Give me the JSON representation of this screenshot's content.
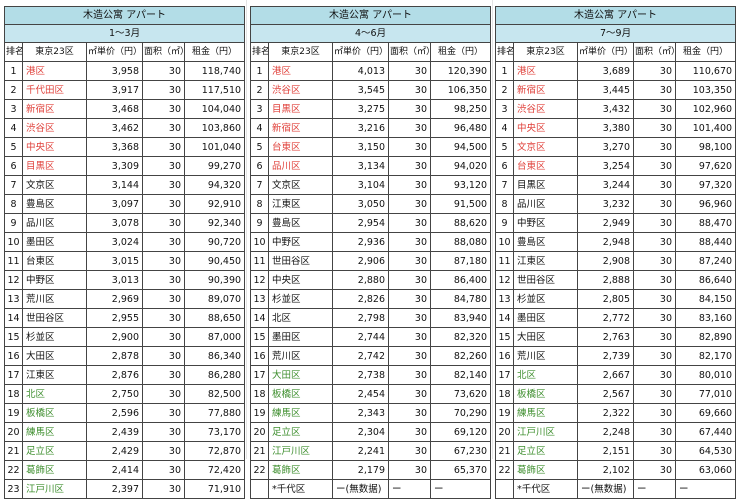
{
  "headers": {
    "rank": "排名",
    "ward": "東京23区",
    "unit_price": "㎡単价（円）",
    "area": "面积（㎡）",
    "rent": "租金（円）"
  },
  "colors": {
    "red": "#e0413b",
    "green": "#3f8f2f",
    "title_bg": "#b3dde7",
    "period_bg": "#c7e6ef"
  },
  "tables": [
    {
      "title": "木造公寓 アパート",
      "period": "1～3月",
      "rows": [
        {
          "rank": "1",
          "ward": "港区",
          "color": "red",
          "price": "3,958",
          "area": "30",
          "rent": "118,740"
        },
        {
          "rank": "2",
          "ward": "千代田区",
          "color": "red",
          "price": "3,917",
          "area": "30",
          "rent": "117,510"
        },
        {
          "rank": "3",
          "ward": "新宿区",
          "color": "red",
          "price": "3,468",
          "area": "30",
          "rent": "104,040"
        },
        {
          "rank": "4",
          "ward": "渋谷区",
          "color": "red",
          "price": "3,462",
          "area": "30",
          "rent": "103,860"
        },
        {
          "rank": "5",
          "ward": "中央区",
          "color": "red",
          "price": "3,368",
          "area": "30",
          "rent": "101,040"
        },
        {
          "rank": "6",
          "ward": "目黒区",
          "color": "red",
          "price": "3,309",
          "area": "30",
          "rent": "99,270"
        },
        {
          "rank": "7",
          "ward": "文京区",
          "color": "black",
          "price": "3,144",
          "area": "30",
          "rent": "94,320"
        },
        {
          "rank": "8",
          "ward": "豊島区",
          "color": "black",
          "price": "3,097",
          "area": "30",
          "rent": "92,910"
        },
        {
          "rank": "9",
          "ward": "品川区",
          "color": "black",
          "price": "3,078",
          "area": "30",
          "rent": "92,340"
        },
        {
          "rank": "10",
          "ward": "墨田区",
          "color": "black",
          "price": "3,024",
          "area": "30",
          "rent": "90,720"
        },
        {
          "rank": "11",
          "ward": "台東区",
          "color": "black",
          "price": "3,015",
          "area": "30",
          "rent": "90,450"
        },
        {
          "rank": "12",
          "ward": "中野区",
          "color": "black",
          "price": "3,013",
          "area": "30",
          "rent": "90,390"
        },
        {
          "rank": "13",
          "ward": "荒川区",
          "color": "black",
          "price": "2,969",
          "area": "30",
          "rent": "89,070"
        },
        {
          "rank": "14",
          "ward": "世田谷区",
          "color": "black",
          "price": "2,955",
          "area": "30",
          "rent": "88,650"
        },
        {
          "rank": "15",
          "ward": "杉並区",
          "color": "black",
          "price": "2,900",
          "area": "30",
          "rent": "87,000"
        },
        {
          "rank": "16",
          "ward": "大田区",
          "color": "black",
          "price": "2,878",
          "area": "30",
          "rent": "86,340"
        },
        {
          "rank": "17",
          "ward": "江東区",
          "color": "black",
          "price": "2,876",
          "area": "30",
          "rent": "86,280"
        },
        {
          "rank": "18",
          "ward": "北区",
          "color": "green",
          "price": "2,750",
          "area": "30",
          "rent": "82,500"
        },
        {
          "rank": "19",
          "ward": "板橋区",
          "color": "green",
          "price": "2,596",
          "area": "30",
          "rent": "77,880"
        },
        {
          "rank": "20",
          "ward": "練馬区",
          "color": "green",
          "price": "2,439",
          "area": "30",
          "rent": "73,170"
        },
        {
          "rank": "21",
          "ward": "足立区",
          "color": "green",
          "price": "2,429",
          "area": "30",
          "rent": "72,870"
        },
        {
          "rank": "22",
          "ward": "葛飾区",
          "color": "green",
          "price": "2,414",
          "area": "30",
          "rent": "72,420"
        },
        {
          "rank": "23",
          "ward": "江戸川区",
          "color": "green",
          "price": "2,397",
          "area": "30",
          "rent": "71,910"
        }
      ]
    },
    {
      "title": "木造公寓 アパート",
      "period": "4～6月",
      "rows": [
        {
          "rank": "1",
          "ward": "港区",
          "color": "red",
          "price": "4,013",
          "area": "30",
          "rent": "120,390"
        },
        {
          "rank": "2",
          "ward": "渋谷区",
          "color": "red",
          "price": "3,545",
          "area": "30",
          "rent": "106,350"
        },
        {
          "rank": "3",
          "ward": "目黒区",
          "color": "red",
          "price": "3,275",
          "area": "30",
          "rent": "98,250"
        },
        {
          "rank": "4",
          "ward": "新宿区",
          "color": "red",
          "price": "3,216",
          "area": "30",
          "rent": "96,480"
        },
        {
          "rank": "5",
          "ward": "台東区",
          "color": "red",
          "price": "3,150",
          "area": "30",
          "rent": "94,500"
        },
        {
          "rank": "6",
          "ward": "品川区",
          "color": "red",
          "price": "3,134",
          "area": "30",
          "rent": "94,020"
        },
        {
          "rank": "7",
          "ward": "文京区",
          "color": "black",
          "price": "3,104",
          "area": "30",
          "rent": "93,120"
        },
        {
          "rank": "8",
          "ward": "江東区",
          "color": "black",
          "price": "3,050",
          "area": "30",
          "rent": "91,500"
        },
        {
          "rank": "9",
          "ward": "豊島区",
          "color": "black",
          "price": "2,954",
          "area": "30",
          "rent": "88,620"
        },
        {
          "rank": "10",
          "ward": "中野区",
          "color": "black",
          "price": "2,936",
          "area": "30",
          "rent": "88,080"
        },
        {
          "rank": "11",
          "ward": "世田谷区",
          "color": "black",
          "price": "2,906",
          "area": "30",
          "rent": "87,180"
        },
        {
          "rank": "12",
          "ward": "中央区",
          "color": "black",
          "price": "2,880",
          "area": "30",
          "rent": "86,400"
        },
        {
          "rank": "13",
          "ward": "杉並区",
          "color": "black",
          "price": "2,826",
          "area": "30",
          "rent": "84,780"
        },
        {
          "rank": "14",
          "ward": "北区",
          "color": "black",
          "price": "2,798",
          "area": "30",
          "rent": "83,940"
        },
        {
          "rank": "15",
          "ward": "墨田区",
          "color": "black",
          "price": "2,744",
          "area": "30",
          "rent": "82,320"
        },
        {
          "rank": "16",
          "ward": "荒川区",
          "color": "black",
          "price": "2,742",
          "area": "30",
          "rent": "82,260"
        },
        {
          "rank": "17",
          "ward": "大田区",
          "color": "green",
          "price": "2,738",
          "area": "30",
          "rent": "82,140"
        },
        {
          "rank": "18",
          "ward": "板橋区",
          "color": "green",
          "price": "2,454",
          "area": "30",
          "rent": "73,620"
        },
        {
          "rank": "19",
          "ward": "練馬区",
          "color": "green",
          "price": "2,343",
          "area": "30",
          "rent": "70,290"
        },
        {
          "rank": "20",
          "ward": "足立区",
          "color": "green",
          "price": "2,304",
          "area": "30",
          "rent": "69,120"
        },
        {
          "rank": "21",
          "ward": "江戸川区",
          "color": "green",
          "price": "2,241",
          "area": "30",
          "rent": "67,230"
        },
        {
          "rank": "22",
          "ward": "葛飾区",
          "color": "green",
          "price": "2,179",
          "area": "30",
          "rent": "65,370"
        }
      ],
      "footer": {
        "ward": "*千代区",
        "price": "ー(無数据)",
        "area": "ー",
        "rent": "ー"
      }
    },
    {
      "title": "木造公寓 アパート",
      "period": "7～9月",
      "rows": [
        {
          "rank": "1",
          "ward": "港区",
          "color": "red",
          "price": "3,689",
          "area": "30",
          "rent": "110,670"
        },
        {
          "rank": "2",
          "ward": "新宿区",
          "color": "red",
          "price": "3,445",
          "area": "30",
          "rent": "103,350"
        },
        {
          "rank": "3",
          "ward": "渋谷区",
          "color": "red",
          "price": "3,432",
          "area": "30",
          "rent": "102,960"
        },
        {
          "rank": "4",
          "ward": "中央区",
          "color": "red",
          "price": "3,380",
          "area": "30",
          "rent": "101,400"
        },
        {
          "rank": "5",
          "ward": "文京区",
          "color": "red",
          "price": "3,270",
          "area": "30",
          "rent": "98,100"
        },
        {
          "rank": "6",
          "ward": "台東区",
          "color": "red",
          "price": "3,254",
          "area": "30",
          "rent": "97,620"
        },
        {
          "rank": "7",
          "ward": "目黒区",
          "color": "black",
          "price": "3,244",
          "area": "30",
          "rent": "97,320"
        },
        {
          "rank": "8",
          "ward": "品川区",
          "color": "black",
          "price": "3,232",
          "area": "30",
          "rent": "96,960"
        },
        {
          "rank": "9",
          "ward": "中野区",
          "color": "black",
          "price": "2,949",
          "area": "30",
          "rent": "88,470"
        },
        {
          "rank": "10",
          "ward": "豊島区",
          "color": "black",
          "price": "2,948",
          "area": "30",
          "rent": "88,440"
        },
        {
          "rank": "11",
          "ward": "江東区",
          "color": "black",
          "price": "2,908",
          "area": "30",
          "rent": "87,240"
        },
        {
          "rank": "12",
          "ward": "世田谷区",
          "color": "black",
          "price": "2,888",
          "area": "30",
          "rent": "86,640"
        },
        {
          "rank": "13",
          "ward": "杉並区",
          "color": "black",
          "price": "2,805",
          "area": "30",
          "rent": "84,150"
        },
        {
          "rank": "14",
          "ward": "墨田区",
          "color": "black",
          "price": "2,772",
          "area": "30",
          "rent": "83,160"
        },
        {
          "rank": "15",
          "ward": "大田区",
          "color": "black",
          "price": "2,763",
          "area": "30",
          "rent": "82,890"
        },
        {
          "rank": "16",
          "ward": "荒川区",
          "color": "black",
          "price": "2,739",
          "area": "30",
          "rent": "82,170"
        },
        {
          "rank": "17",
          "ward": "北区",
          "color": "green",
          "price": "2,667",
          "area": "30",
          "rent": "80,010"
        },
        {
          "rank": "18",
          "ward": "板橋区",
          "color": "green",
          "price": "2,567",
          "area": "30",
          "rent": "77,010"
        },
        {
          "rank": "19",
          "ward": "練馬区",
          "color": "green",
          "price": "2,322",
          "area": "30",
          "rent": "69,660"
        },
        {
          "rank": "20",
          "ward": "江戸川区",
          "color": "green",
          "price": "2,248",
          "area": "30",
          "rent": "67,440"
        },
        {
          "rank": "21",
          "ward": "足立区",
          "color": "green",
          "price": "2,151",
          "area": "30",
          "rent": "64,530"
        },
        {
          "rank": "22",
          "ward": "葛飾区",
          "color": "green",
          "price": "2,102",
          "area": "30",
          "rent": "63,060"
        }
      ],
      "footer": {
        "ward": "*千代区",
        "price": "ー(無数据)",
        "area": "ー",
        "rent": "ー"
      }
    }
  ]
}
